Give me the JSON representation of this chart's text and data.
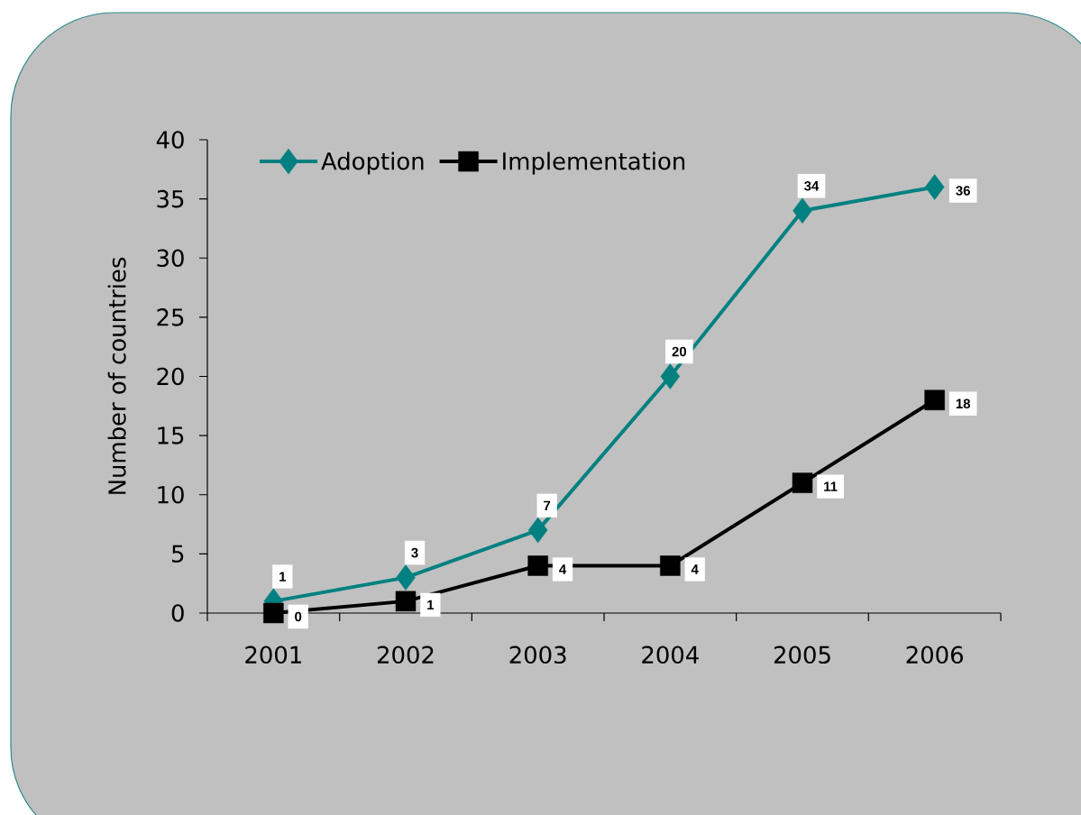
{
  "chart_data": {
    "type": "line",
    "ylabel": "Number of countries",
    "categories": [
      "2001",
      "2002",
      "2003",
      "2004",
      "2005",
      "2006"
    ],
    "ylim": [
      0,
      40
    ],
    "yticks": [
      0,
      5,
      10,
      15,
      20,
      25,
      30,
      35,
      40
    ],
    "series": [
      {
        "name": "Adoption",
        "color": "#008080",
        "marker": "diamond",
        "values": [
          1,
          3,
          7,
          20,
          34,
          36
        ]
      },
      {
        "name": "Implementation",
        "color": "#000000",
        "marker": "square",
        "values": [
          0,
          1,
          4,
          4,
          11,
          18
        ]
      }
    ],
    "data_labels": true,
    "legend": "top left"
  }
}
